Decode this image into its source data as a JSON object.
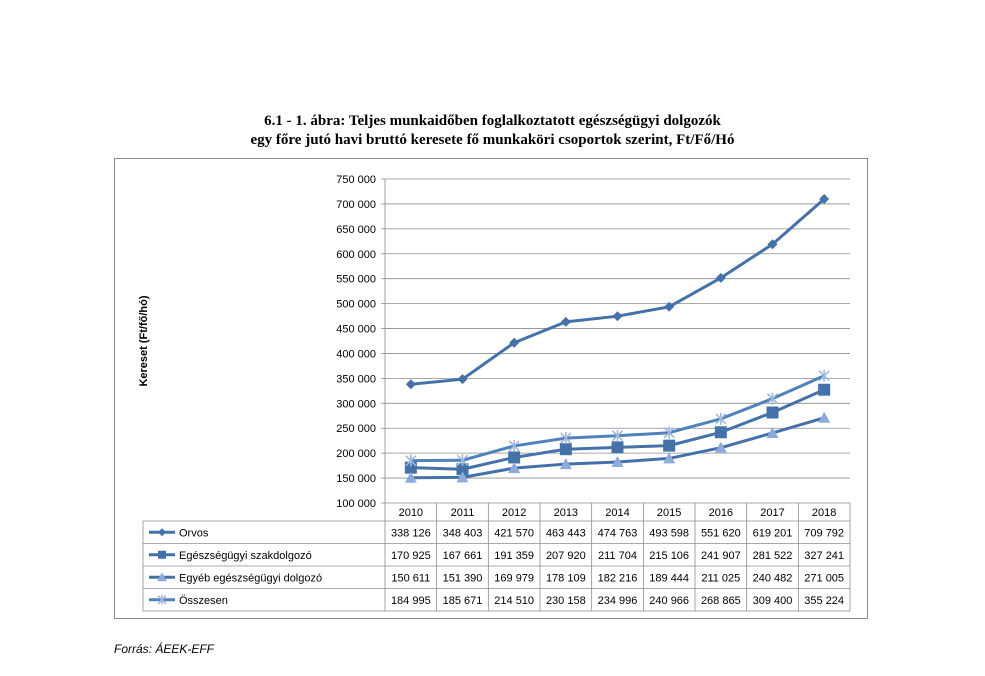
{
  "title_line1": "6.1 - 1. ábra: Teljes munkaidőben foglalkoztatott egészségügyi dolgozók",
  "title_line2": "egy főre jutó havi bruttó keresete fő munkaköri csoportok szerint, Ft/Fő/Hó",
  "source": "Forrás: ÁEEK-EFF",
  "chart_data": {
    "type": "line",
    "ylabel": "Kereset (Ft/fő/hó)",
    "xlabel": "",
    "ylim": [
      100000,
      750000
    ],
    "ytick_step": 50000,
    "ytick_labels": [
      "100 000",
      "150 000",
      "200 000",
      "250 000",
      "300 000",
      "350 000",
      "400 000",
      "450 000",
      "500 000",
      "550 000",
      "600 000",
      "650 000",
      "700 000",
      "750 000"
    ],
    "grid": "horizontal",
    "legend": "data-table-below",
    "categories": [
      "2010",
      "2011",
      "2012",
      "2013",
      "2014",
      "2015",
      "2016",
      "2017",
      "2018"
    ],
    "series": [
      {
        "name": "Orvos",
        "marker": "diamond",
        "color": "#4472a8",
        "values": [
          338126,
          348403,
          421570,
          463443,
          474763,
          493598,
          551620,
          619201,
          709792
        ],
        "labels": [
          "338 126",
          "348 403",
          "421 570",
          "463 443",
          "474 763",
          "493 598",
          "551 620",
          "619 201",
          "709 792"
        ]
      },
      {
        "name": "Egészségügyi szakdolgozó",
        "marker": "square",
        "color": "#4472a8",
        "values": [
          170925,
          167661,
          191359,
          207920,
          211704,
          215106,
          241907,
          281522,
          327241
        ],
        "labels": [
          "170 925",
          "167 661",
          "191 359",
          "207 920",
          "211 704",
          "215 106",
          "241 907",
          "281 522",
          "327 241"
        ]
      },
      {
        "name": "Egyéb egészségügyi dolgozó",
        "marker": "triangle",
        "color": "#4472a8",
        "values": [
          150611,
          151390,
          169979,
          178109,
          182216,
          189444,
          211025,
          240482,
          271005
        ],
        "labels": [
          "150 611",
          "151 390",
          "169 979",
          "178 109",
          "182 216",
          "189 444",
          "211 025",
          "240 482",
          "271 005"
        ]
      },
      {
        "name": "Összesen",
        "marker": "star",
        "color": "#4f81bd",
        "values": [
          184995,
          185671,
          214510,
          230158,
          234996,
          240966,
          268865,
          309400,
          355224
        ],
        "labels": [
          "184 995",
          "185 671",
          "214 510",
          "230 158",
          "234 996",
          "240 966",
          "268 865",
          "309 400",
          "355 224"
        ]
      }
    ]
  }
}
